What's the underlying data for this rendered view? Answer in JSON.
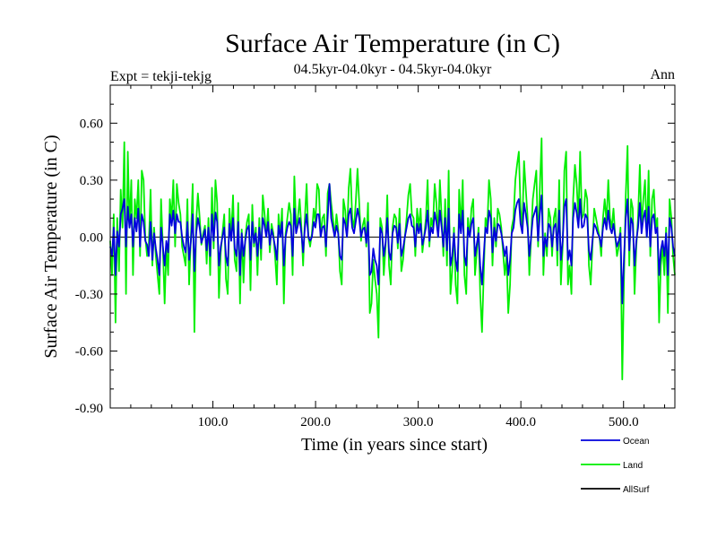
{
  "chart_data": {
    "type": "line",
    "title": "Surface Air Temperature (in C)",
    "subtitle": "04.5kyr-04.0kyr - 04.5kyr-04.0kyr",
    "left_label": "Expt = tekji-tekjg",
    "right_label": "Ann",
    "xlabel": "Time (in years since start)",
    "ylabel": "Surface Air Temperature (in C)",
    "xlim": [
      0,
      550
    ],
    "ylim": [
      -0.9,
      0.8
    ],
    "x_ticks": [
      100,
      200,
      300,
      400,
      500
    ],
    "x_tick_labels": [
      "100.0",
      "200.0",
      "300.0",
      "400.0",
      "500.0"
    ],
    "y_ticks": [
      -0.9,
      -0.6,
      -0.3,
      0.0,
      0.3,
      0.6
    ],
    "y_tick_labels": [
      "-0.90",
      "-0.60",
      "-0.30",
      "0.00",
      "0.30",
      "0.60"
    ],
    "zero_line": 0.0,
    "legend_position": "bottom-right",
    "series": [
      {
        "name": "Land",
        "color": "#00ee00",
        "values": [
          -0.02,
          -0.2,
          0.12,
          -0.45,
          0.1,
          -0.18,
          0.25,
          0.05,
          0.5,
          -0.3,
          0.45,
          0.05,
          0.3,
          -0.2,
          0.2,
          0.1,
          0.3,
          -0.1,
          0.35,
          0.3,
          0.0,
          -0.1,
          -0.05,
          0.25,
          -0.15,
          0.05,
          -0.1,
          -0.2,
          -0.3,
          0.2,
          -0.05,
          -0.35,
          -0.05,
          -0.2,
          0.2,
          0.1,
          0.3,
          -0.05,
          0.28,
          0.18,
          0.12,
          -0.05,
          -0.1,
          -0.15,
          0.2,
          -0.25,
          0.0,
          0.28,
          -0.5,
          0.08,
          0.23,
          0.1,
          -0.04,
          0.02,
          0.06,
          -0.14,
          0.1,
          -0.2,
          0.26,
          -0.06,
          0.3,
          0.18,
          -0.32,
          -0.08,
          0.02,
          0.12,
          -0.22,
          -0.3,
          0.15,
          0.0,
          0.22,
          -0.12,
          -0.18,
          0.18,
          -0.35,
          0.04,
          -0.24,
          0.0,
          0.08,
          0.12,
          -0.28,
          0.17,
          -0.05,
          0.05,
          -0.2,
          0.1,
          -0.12,
          0.22,
          0.12,
          0.0,
          0.15,
          -0.08,
          0.07,
          0.02,
          -0.1,
          -0.25,
          0.12,
          0.0,
          0.15,
          -0.35,
          0.02,
          0.1,
          0.18,
          0.12,
          -0.2,
          0.32,
          0.05,
          0.1,
          0.2,
          0.05,
          -0.15,
          0.1,
          0.28,
          0.0,
          -0.05,
          0.02,
          0.15,
          0.08,
          0.28,
          0.25,
          0.0,
          0.1,
          0.12,
          -0.1,
          0.23,
          0.28,
          0.18,
          0.1,
          0.0,
          0.12,
          0.04,
          -0.18,
          -0.25,
          0.2,
          0.14,
          0.0,
          0.26,
          0.36,
          0.1,
          0.05,
          0.18,
          0.36,
          0.18,
          -0.02,
          0.06,
          0.1,
          -0.05,
          0.18,
          -0.4,
          -0.35,
          -0.12,
          -0.22,
          -0.3,
          -0.53,
          0.1,
          0.05,
          -0.2,
          -0.05,
          0.22,
          -0.15,
          -0.25,
          0.05,
          0.12,
          0.1,
          -0.06,
          0.15,
          -0.18,
          -0.12,
          0.0,
          0.1,
          0.22,
          0.28,
          0.12,
          0.1,
          -0.1,
          0.15,
          0.05,
          0.15,
          -0.08,
          0.0,
          0.1,
          0.3,
          -0.05,
          0.1,
          0.05,
          0.28,
          0.18,
          0.0,
          0.3,
          0.1,
          -0.1,
          0.2,
          -0.15,
          0.35,
          -0.3,
          -0.18,
          0.05,
          -0.25,
          -0.35,
          0.25,
          0.05,
          0.3,
          -0.2,
          -0.3,
          0.1,
          0.0,
          0.15,
          0.2,
          -0.2,
          -0.08,
          0.05,
          -0.3,
          -0.5,
          -0.2,
          0.1,
          0.05,
          0.3,
          0.2,
          -0.15,
          0.1,
          -0.05,
          0.15,
          0.12,
          0.05,
          -0.08,
          -0.2,
          -0.1,
          -0.4,
          -0.25,
          0.05,
          0.1,
          0.3,
          0.38,
          0.45,
          0.15,
          0.05,
          0.4,
          0.25,
          0.1,
          -0.2,
          0.0,
          0.2,
          0.28,
          0.35,
          -0.05,
          0.25,
          0.52,
          -0.2,
          0.02,
          -0.1,
          0.15,
          0.1,
          -0.1,
          0.1,
          0.15,
          -0.15,
          0.3,
          -0.25,
          -0.05,
          0.35,
          0.45,
          -0.25,
          -0.15,
          -0.3,
          0.2,
          0.38,
          0.28,
          0.1,
          0.45,
          0.1,
          0.12,
          0.25,
          0.2,
          -0.15,
          -0.25,
          -0.05,
          0.15,
          0.1,
          0.05,
          0.0,
          -0.1,
          0.1,
          0.2,
          0.08,
          0.3,
          0.1,
          0.05,
          0.15,
          0.0,
          -0.1,
          -0.05,
          0.05,
          -0.75,
          -0.2,
          0.22,
          0.48,
          -0.15,
          0.2,
          0.15,
          -0.3,
          -0.05,
          0.1,
          0.38,
          0.05,
          0.2,
          0.3,
          0.0,
          0.35,
          -0.1,
          0.2,
          0.25,
          0.05,
          0.1,
          -0.45,
          -0.15,
          -0.05,
          -0.2,
          0.05,
          -0.4,
          0.2,
          0.1,
          -0.1,
          -0.2
        ]
      },
      {
        "name": "Ocean",
        "color": "#0000dd",
        "values": [
          -0.05,
          -0.1,
          0.05,
          -0.2,
          0.03,
          -0.05,
          0.12,
          0.15,
          0.2,
          -0.05,
          0.16,
          0.05,
          0.12,
          -0.05,
          0.1,
          0.03,
          0.15,
          -0.05,
          0.12,
          0.08,
          -0.02,
          -0.04,
          -0.1,
          0.08,
          -0.12,
          0.02,
          -0.06,
          -0.12,
          -0.2,
          0.05,
          -0.05,
          -0.15,
          -0.02,
          -0.08,
          0.12,
          0.06,
          0.14,
          0.02,
          0.12,
          0.08,
          0.08,
          0.0,
          -0.05,
          -0.08,
          0.08,
          -0.12,
          -0.02,
          0.12,
          -0.18,
          0.02,
          0.1,
          0.05,
          -0.03,
          0.0,
          0.04,
          -0.07,
          0.05,
          -0.1,
          0.12,
          -0.02,
          0.13,
          0.08,
          -0.15,
          -0.05,
          0.0,
          0.05,
          -0.1,
          -0.15,
          0.07,
          -0.02,
          0.1,
          -0.06,
          -0.1,
          0.08,
          -0.2,
          0.02,
          -0.1,
          -0.02,
          0.04,
          0.06,
          -0.12,
          0.08,
          -0.03,
          0.02,
          -0.1,
          0.05,
          -0.06,
          0.1,
          0.06,
          0.0,
          0.08,
          -0.04,
          0.04,
          0.0,
          -0.05,
          -0.12,
          0.06,
          0.0,
          0.08,
          -0.15,
          0.0,
          0.05,
          0.08,
          0.06,
          -0.1,
          0.15,
          0.02,
          0.06,
          0.1,
          0.02,
          -0.08,
          0.05,
          0.12,
          0.0,
          -0.02,
          0.0,
          0.08,
          0.05,
          0.12,
          0.12,
          0.0,
          0.05,
          0.06,
          -0.05,
          0.1,
          0.28,
          0.1,
          0.05,
          0.0,
          0.06,
          0.02,
          -0.1,
          -0.12,
          0.1,
          0.07,
          0.0,
          0.12,
          0.15,
          0.05,
          0.02,
          0.08,
          0.15,
          0.1,
          0.0,
          0.04,
          0.05,
          -0.03,
          0.08,
          -0.2,
          -0.18,
          -0.06,
          -0.12,
          -0.15,
          -0.25,
          0.05,
          0.02,
          -0.1,
          -0.03,
          0.1,
          -0.08,
          -0.12,
          0.02,
          0.06,
          0.05,
          -0.03,
          0.07,
          -0.1,
          -0.06,
          0.0,
          0.05,
          0.1,
          0.12,
          0.06,
          0.05,
          -0.05,
          0.07,
          0.02,
          0.07,
          -0.04,
          0.0,
          0.05,
          0.14,
          -0.02,
          0.05,
          0.02,
          0.13,
          0.08,
          0.0,
          0.14,
          0.05,
          -0.05,
          0.1,
          -0.07,
          0.15,
          -0.15,
          -0.1,
          0.02,
          -0.12,
          -0.18,
          0.12,
          0.02,
          0.14,
          -0.1,
          -0.15,
          0.05,
          0.0,
          0.07,
          0.1,
          -0.1,
          -0.04,
          0.02,
          -0.15,
          -0.25,
          -0.1,
          0.05,
          0.02,
          0.14,
          0.1,
          -0.08,
          0.05,
          -0.02,
          0.07,
          0.06,
          0.02,
          -0.04,
          -0.1,
          -0.05,
          -0.2,
          -0.12,
          0.02,
          0.05,
          0.14,
          0.18,
          0.2,
          0.07,
          0.02,
          0.18,
          0.12,
          0.05,
          -0.1,
          0.0,
          0.1,
          0.13,
          0.16,
          -0.02,
          0.12,
          0.22,
          -0.1,
          0.0,
          -0.05,
          0.07,
          0.05,
          -0.05,
          0.05,
          0.07,
          -0.07,
          0.14,
          -0.12,
          -0.02,
          0.16,
          0.2,
          -0.12,
          -0.07,
          -0.15,
          0.1,
          0.18,
          0.13,
          0.05,
          0.2,
          0.05,
          0.06,
          0.12,
          0.1,
          -0.07,
          -0.12,
          -0.02,
          0.07,
          0.05,
          0.02,
          0.0,
          -0.05,
          0.05,
          0.1,
          0.04,
          0.14,
          0.05,
          0.02,
          0.07,
          0.0,
          -0.05,
          -0.02,
          0.02,
          -0.35,
          -0.1,
          0.1,
          0.2,
          -0.07,
          0.1,
          0.07,
          -0.15,
          -0.02,
          0.05,
          0.18,
          0.02,
          0.1,
          0.14,
          0.0,
          0.16,
          -0.05,
          0.1,
          0.12,
          0.02,
          0.05,
          -0.2,
          -0.07,
          -0.02,
          -0.1,
          0.02,
          -0.2,
          0.1,
          0.05,
          -0.05,
          -0.1
        ]
      },
      {
        "name": "AllSurf",
        "color": "#000000",
        "values": []
      }
    ]
  }
}
